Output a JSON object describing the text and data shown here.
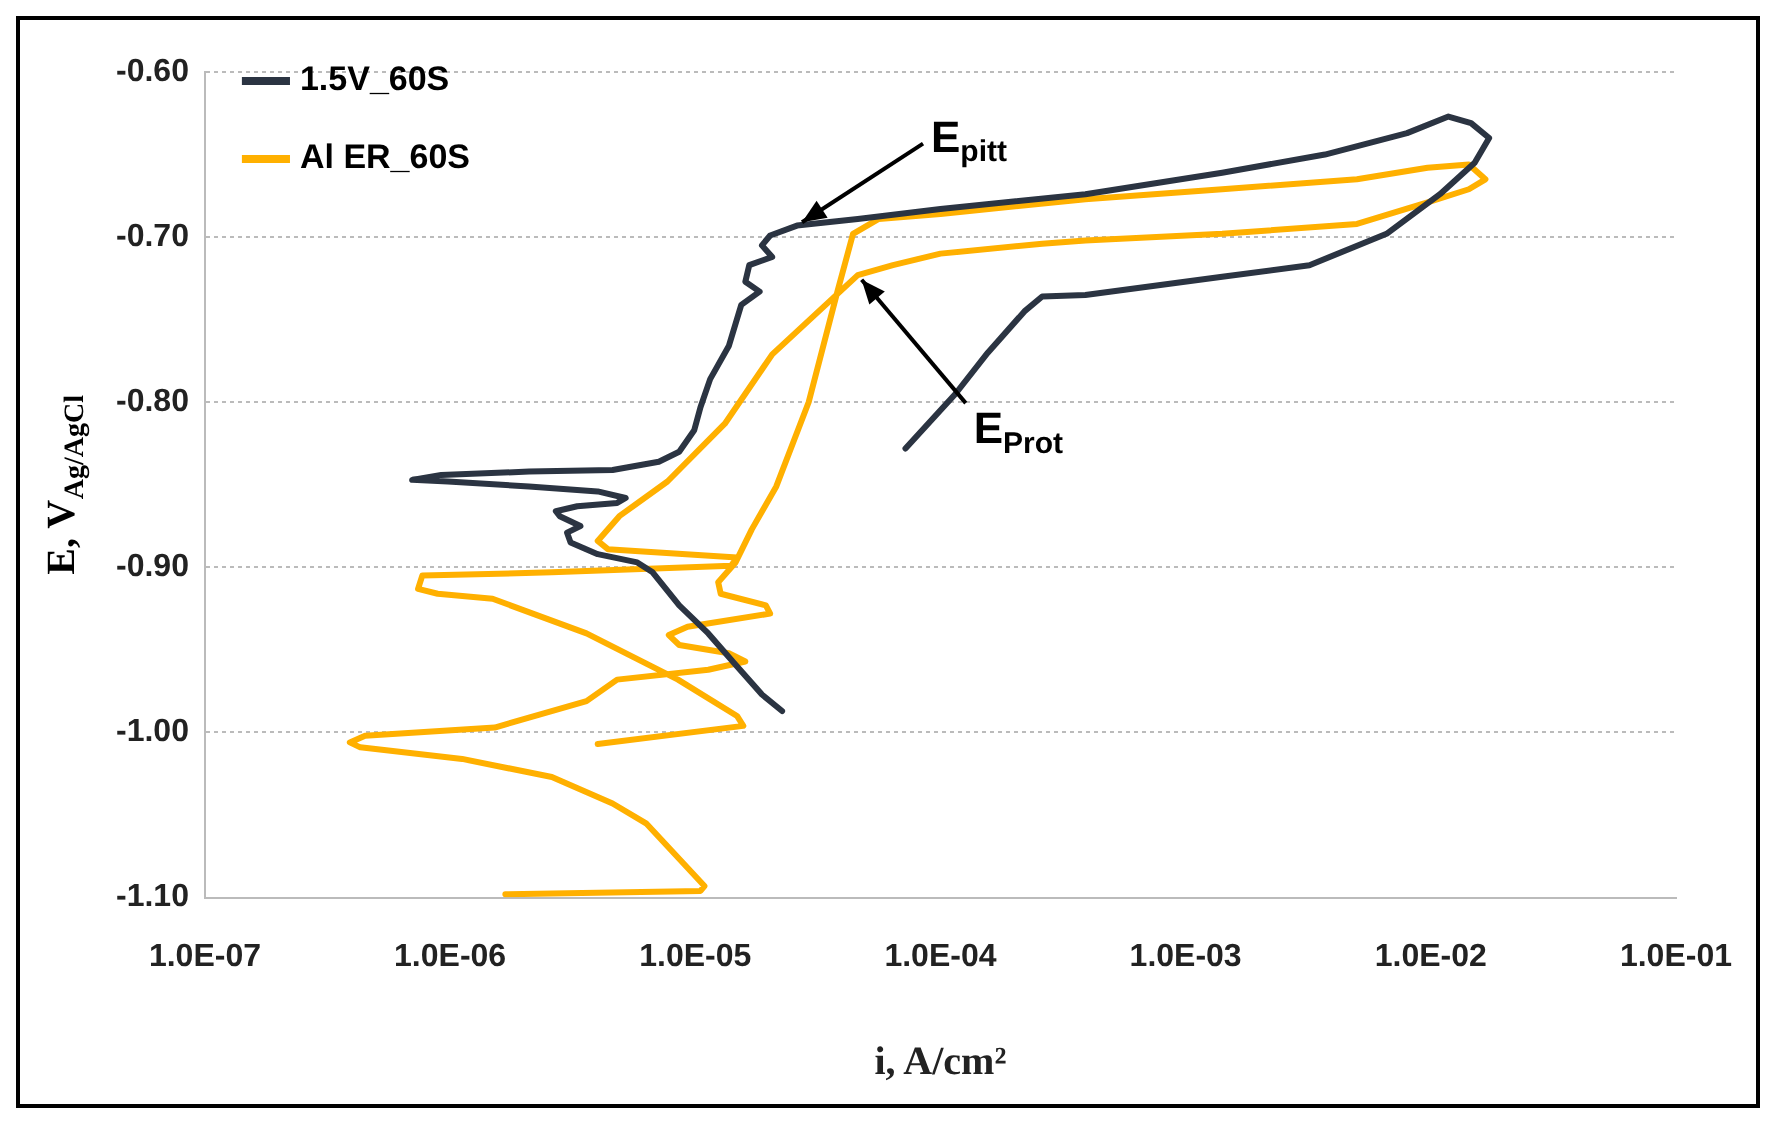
{
  "chart_data": {
    "type": "line",
    "xlabel": "i, A/cm²",
    "ylabel": "E, V$_{Ag/AgCl}$",
    "log": "x",
    "grid": "y",
    "legend": "top left",
    "marker": "none",
    "line_style": "solid",
    "xlim": [
      1e-07,
      0.1
    ],
    "ylim": [
      -1.1,
      -0.6
    ],
    "xticks": [
      {
        "value": 1e-07,
        "label": "1.0E-07"
      },
      {
        "value": 1e-06,
        "label": "1.0E-06"
      },
      {
        "value": 1e-05,
        "label": "1.0E-05"
      },
      {
        "value": 0.0001,
        "label": "1.0E-04"
      },
      {
        "value": 0.001,
        "label": "1.0E-03"
      },
      {
        "value": 0.01,
        "label": "1.0E-02"
      },
      {
        "value": 0.1,
        "label": "1.0E-01"
      }
    ],
    "yticks": [
      {
        "value": -1.1,
        "label": "-1.10"
      },
      {
        "value": -1.0,
        "label": "-1.00"
      },
      {
        "value": -0.9,
        "label": "-0.90"
      },
      {
        "value": -0.8,
        "label": "-0.80"
      },
      {
        "value": -0.7,
        "label": "-0.70"
      },
      {
        "value": -0.6,
        "label": "-0.60"
      }
    ],
    "series": [
      {
        "name": "1.5V_60S",
        "color": "#2b3442",
        "x": [
          2.26e-05,
          1.87e-05,
          1.46e-05,
          1.13e-05,
          8.6e-06,
          6.7e-06,
          5.8e-06,
          4e-06,
          3.1e-06,
          3e-06,
          3.4e-06,
          2.8e-06,
          2.7e-06,
          3.3e-06,
          4.8e-06,
          5.2e-06,
          4e-06,
          2.1e-06,
          9.8e-07,
          7e-07,
          9.2e-07,
          2.1e-06,
          4.6e-06,
          7.1e-06,
          8.6e-06,
          9.9e-06,
          1.05e-05,
          1.15e-05,
          1.37e-05,
          1.54e-05,
          1.83e-05,
          1.6e-05,
          1.66e-05,
          2.06e-05,
          1.87e-05,
          2.02e-05,
          2.6e-05,
          4.6e-05,
          0.0001,
          0.00039,
          0.00141,
          0.0037,
          0.008,
          0.0118,
          0.0146,
          0.0173,
          0.0151,
          0.0109,
          0.0066,
          0.0032,
          0.00141,
          0.00039,
          0.00026,
          0.00022,
          0.000156,
          0.000115,
          7.2e-05
        ],
        "values": [
          -0.987,
          -0.977,
          -0.959,
          -0.94,
          -0.923,
          -0.903,
          -0.897,
          -0.892,
          -0.885,
          -0.879,
          -0.875,
          -0.869,
          -0.866,
          -0.863,
          -0.861,
          -0.858,
          -0.854,
          -0.851,
          -0.848,
          -0.847,
          -0.844,
          -0.842,
          -0.841,
          -0.836,
          -0.83,
          -0.817,
          -0.803,
          -0.786,
          -0.766,
          -0.741,
          -0.733,
          -0.727,
          -0.717,
          -0.712,
          -0.705,
          -0.699,
          -0.693,
          -0.689,
          -0.683,
          -0.674,
          -0.661,
          -0.65,
          -0.637,
          -0.627,
          -0.631,
          -0.64,
          -0.655,
          -0.674,
          -0.698,
          -0.717,
          -0.724,
          -0.735,
          -0.736,
          -0.745,
          -0.77,
          -0.795,
          -0.828
        ]
      },
      {
        "name": "Al ER_60S",
        "color": "#ffb000",
        "x": [
          1.68e-06,
          1.05e-05,
          1.09e-05,
          6.3e-06,
          4.6e-06,
          2.6e-06,
          1.12e-06,
          4.3e-07,
          3.9e-07,
          4.5e-07,
          1.52e-06,
          3.6e-06,
          4.8e-06,
          1.13e-05,
          1.6e-05,
          1.37e-05,
          8.6e-06,
          7.8e-06,
          9.3e-06,
          2.02e-05,
          1.94e-05,
          1.27e-05,
          1.24e-05,
          1.46e-05,
          1.7e-05,
          2.14e-05,
          2.9e-05,
          3.8e-05,
          4.4e-05,
          5.6e-05,
          0.0001,
          0.00039,
          0.00141,
          0.005,
          0.0097,
          0.0143,
          0.0167,
          0.0143,
          0.0097,
          0.005,
          0.00141,
          0.00039,
          0.00026,
          0.0001,
          6.4e-05,
          4.6e-05,
          2.06e-05,
          1.32e-05,
          7.7e-06,
          4.9e-06,
          4e-06,
          4.4e-06,
          1.48e-05,
          1.4e-05,
          2.6e-06,
          7.7e-07,
          7.4e-07,
          8.9e-07,
          1.49e-06,
          3.6e-06,
          8.5e-06,
          1.48e-05,
          1.57e-05,
          4e-06
        ],
        "values": [
          -1.098,
          -1.096,
          -1.093,
          -1.055,
          -1.043,
          -1.027,
          -1.016,
          -1.009,
          -1.006,
          -1.002,
          -0.997,
          -0.981,
          -0.968,
          -0.962,
          -0.957,
          -0.952,
          -0.947,
          -0.941,
          -0.936,
          -0.928,
          -0.923,
          -0.916,
          -0.909,
          -0.897,
          -0.877,
          -0.851,
          -0.8,
          -0.733,
          -0.698,
          -0.689,
          -0.686,
          -0.677,
          -0.671,
          -0.665,
          -0.658,
          -0.656,
          -0.665,
          -0.671,
          -0.679,
          -0.692,
          -0.698,
          -0.702,
          -0.704,
          -0.71,
          -0.717,
          -0.723,
          -0.771,
          -0.813,
          -0.848,
          -0.869,
          -0.884,
          -0.889,
          -0.894,
          -0.899,
          -0.903,
          -0.905,
          -0.913,
          -0.916,
          -0.919,
          -0.94,
          -0.968,
          -0.99,
          -0.996,
          -1.007
        ]
      }
    ],
    "annotations": [
      {
        "text": "E$_{pitt}$",
        "x": 2.6e-05,
        "y": -0.693
      },
      {
        "text": "E$_{Prot}$",
        "x": 4.6e-05,
        "y": -0.723
      }
    ]
  }
}
